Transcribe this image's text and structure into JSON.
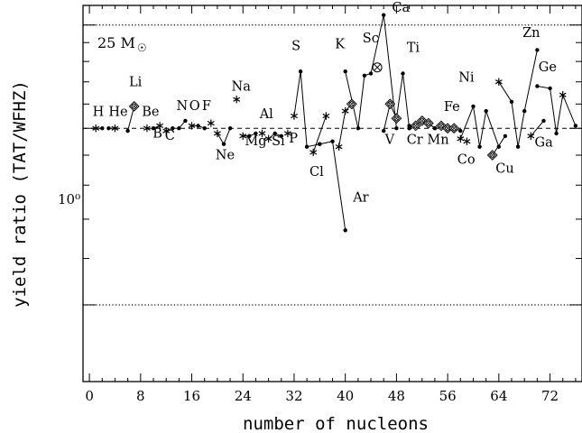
{
  "chart_data": {
    "type": "scatter",
    "title": "",
    "annotation": "25 M",
    "annotation_symbol": "☉",
    "xlabel": "number of nucleons",
    "ylabel": "yield ratio (TAT/WFHZ)",
    "xlim": [
      -1,
      77
    ],
    "ylim": [
      0.37,
      1.62
    ],
    "y_scale": "log",
    "x_ticks": [
      0,
      8,
      16,
      24,
      32,
      40,
      48,
      56,
      64,
      72
    ],
    "x_tick_labels": [
      "0",
      "8",
      "16",
      "24",
      "32",
      "40",
      "48",
      "56",
      "64",
      "72"
    ],
    "y_tick_label": "10⁰",
    "y_tick_label_value": 1.0,
    "y_major_ticks": [
      0.5,
      1.0,
      1.5
    ],
    "y_minor_ticks": [
      0.6,
      0.7,
      0.8,
      0.9,
      1.1,
      1.2,
      1.3,
      1.4
    ],
    "reference_lines": [
      {
        "y": 1.0,
        "style": "dashed"
      },
      {
        "y": 1.5,
        "style": "dotted"
      },
      {
        "y": 0.5,
        "style": "dotted"
      }
    ],
    "series": [
      {
        "element": "H",
        "points": [
          {
            "x": 1,
            "y": 1.0,
            "m": "star"
          },
          {
            "x": 2,
            "y": 1.0,
            "m": "dot"
          }
        ]
      },
      {
        "element": "He",
        "points": [
          {
            "x": 3,
            "y": 1.0,
            "m": "dot"
          },
          {
            "x": 4,
            "y": 1.0,
            "m": "star"
          }
        ]
      },
      {
        "element": "Li",
        "points": [
          {
            "x": 6,
            "y": 0.99,
            "m": "dot"
          },
          {
            "x": 7,
            "y": 1.09,
            "m": "dsq"
          }
        ]
      },
      {
        "element": "Be",
        "points": [
          {
            "x": 9,
            "y": 1.0,
            "m": "star"
          }
        ]
      },
      {
        "element": "B",
        "points": [
          {
            "x": 10,
            "y": 1.0,
            "m": "dot"
          },
          {
            "x": 11,
            "y": 1.01,
            "m": "star"
          }
        ]
      },
      {
        "element": "C",
        "points": [
          {
            "x": 12,
            "y": 0.99,
            "m": "star"
          },
          {
            "x": 13,
            "y": 1.0,
            "m": "dot"
          }
        ]
      },
      {
        "element": "N",
        "points": [
          {
            "x": 14,
            "y": 1.0,
            "m": "dot"
          },
          {
            "x": 15,
            "y": 1.03,
            "m": "dot"
          }
        ]
      },
      {
        "element": "O",
        "points": [
          {
            "x": 16,
            "y": 1.01,
            "m": "star"
          },
          {
            "x": 17,
            "y": 1.01,
            "m": "dot"
          },
          {
            "x": 18,
            "y": 1.0,
            "m": "dot"
          }
        ]
      },
      {
        "element": "F",
        "points": [
          {
            "x": 19,
            "y": 1.02,
            "m": "star"
          }
        ]
      },
      {
        "element": "Ne",
        "points": [
          {
            "x": 20,
            "y": 0.98,
            "m": "star"
          },
          {
            "x": 21,
            "y": 0.94,
            "m": "dot"
          },
          {
            "x": 22,
            "y": 1.0,
            "m": "dot"
          }
        ]
      },
      {
        "element": "Na",
        "points": [
          {
            "x": 23,
            "y": 1.12,
            "m": "star"
          }
        ]
      },
      {
        "element": "Mg",
        "points": [
          {
            "x": 24,
            "y": 0.97,
            "m": "star"
          },
          {
            "x": 25,
            "y": 0.97,
            "m": "dot"
          },
          {
            "x": 26,
            "y": 0.98,
            "m": "dot"
          }
        ]
      },
      {
        "element": "Al",
        "points": [
          {
            "x": 27,
            "y": 0.98,
            "m": "star"
          }
        ]
      },
      {
        "element": "Si",
        "points": [
          {
            "x": 28,
            "y": 0.96,
            "m": "star"
          },
          {
            "x": 29,
            "y": 0.98,
            "m": "dot"
          },
          {
            "x": 30,
            "y": 0.97,
            "m": "dot"
          }
        ]
      },
      {
        "element": "P",
        "points": [
          {
            "x": 31,
            "y": 0.98,
            "m": "star"
          }
        ]
      },
      {
        "element": "S",
        "points": [
          {
            "x": 32,
            "y": 1.05,
            "m": "star"
          },
          {
            "x": 33,
            "y": 1.25,
            "m": "dot"
          },
          {
            "x": 34,
            "y": 0.93,
            "m": "dot"
          },
          {
            "x": 36,
            "y": 0.94,
            "m": "dot"
          }
        ]
      },
      {
        "element": "Cl",
        "points": [
          {
            "x": 35,
            "y": 0.91,
            "m": "star"
          },
          {
            "x": 37,
            "y": 1.05,
            "m": "star"
          }
        ]
      },
      {
        "element": "Ar",
        "points": [
          {
            "x": 36,
            "y": 0.94,
            "m": "dot"
          },
          {
            "x": 38,
            "y": 0.95,
            "m": "dot"
          },
          {
            "x": 40,
            "y": 0.67,
            "m": "dot"
          }
        ]
      },
      {
        "element": "K",
        "points": [
          {
            "x": 39,
            "y": 0.93,
            "m": "star"
          },
          {
            "x": 40,
            "y": 1.07,
            "m": "star"
          },
          {
            "x": 41,
            "y": 1.1,
            "m": "dsq"
          }
        ]
      },
      {
        "element": "Ca",
        "points": [
          {
            "x": 40,
            "y": 1.25,
            "m": "dot"
          },
          {
            "x": 42,
            "y": 1.0,
            "m": "dot"
          },
          {
            "x": 43,
            "y": 1.23,
            "m": "dot"
          },
          {
            "x": 44,
            "y": 1.24,
            "m": "dot"
          },
          {
            "x": 46,
            "y": 1.56,
            "m": "dot"
          },
          {
            "x": 48,
            "y": 1.0,
            "m": "dot"
          }
        ]
      },
      {
        "element": "Sc",
        "points": [
          {
            "x": 45,
            "y": 1.27,
            "m": "otimes"
          }
        ]
      },
      {
        "element": "Ti",
        "points": [
          {
            "x": 46,
            "y": 0.99,
            "m": "dot"
          },
          {
            "x": 47,
            "y": 1.1,
            "m": "dsq"
          },
          {
            "x": 48,
            "y": 1.04,
            "m": "dsq"
          },
          {
            "x": 49,
            "y": 1.24,
            "m": "dot"
          },
          {
            "x": 50,
            "y": 1.0,
            "m": "dot"
          }
        ]
      },
      {
        "element": "V",
        "points": [
          {
            "x": 50,
            "y": 1.01,
            "m": "dot"
          },
          {
            "x": 51,
            "y": 1.01,
            "m": "dsq"
          }
        ]
      },
      {
        "element": "Cr",
        "points": [
          {
            "x": 50,
            "y": 1.0,
            "m": "dot"
          },
          {
            "x": 52,
            "y": 1.03,
            "m": "dsq"
          },
          {
            "x": 53,
            "y": 1.02,
            "m": "dsq"
          },
          {
            "x": 54,
            "y": 1.0,
            "m": "dot"
          }
        ]
      },
      {
        "element": "Mn",
        "points": [
          {
            "x": 55,
            "y": 1.01,
            "m": "dsq"
          }
        ]
      },
      {
        "element": "Fe",
        "points": [
          {
            "x": 54,
            "y": 1.0,
            "m": "dot"
          },
          {
            "x": 56,
            "y": 1.0,
            "m": "dsq"
          },
          {
            "x": 57,
            "y": 1.0,
            "m": "dsq"
          },
          {
            "x": 58,
            "y": 0.99,
            "m": "dot"
          }
        ]
      },
      {
        "element": "Co",
        "points": [
          {
            "x": 59,
            "y": 0.95,
            "m": "star"
          }
        ]
      },
      {
        "element": "Ni",
        "points": [
          {
            "x": 58,
            "y": 0.96,
            "m": "star"
          },
          {
            "x": 60,
            "y": 1.09,
            "m": "dot"
          },
          {
            "x": 61,
            "y": 0.93,
            "m": "dot"
          },
          {
            "x": 62,
            "y": 1.07,
            "m": "dot"
          },
          {
            "x": 64,
            "y": 0.93,
            "m": "dot"
          }
        ]
      },
      {
        "element": "Cu",
        "points": [
          {
            "x": 63,
            "y": 0.9,
            "m": "dsq"
          },
          {
            "x": 65,
            "y": 0.97,
            "m": "dot"
          }
        ]
      },
      {
        "element": "Zn",
        "points": [
          {
            "x": 64,
            "y": 1.2,
            "m": "star"
          },
          {
            "x": 66,
            "y": 1.11,
            "m": "dot"
          },
          {
            "x": 67,
            "y": 0.93,
            "m": "dot"
          },
          {
            "x": 68,
            "y": 1.07,
            "m": "dot"
          },
          {
            "x": 70,
            "y": 1.36,
            "m": "dot"
          }
        ]
      },
      {
        "element": "Ga",
        "points": [
          {
            "x": 69,
            "y": 0.97,
            "m": "star"
          },
          {
            "x": 71,
            "y": 1.03,
            "m": "dot"
          }
        ]
      },
      {
        "element": "Ge",
        "points": [
          {
            "x": 70,
            "y": 1.18,
            "m": "dot"
          },
          {
            "x": 72,
            "y": 1.17,
            "m": "dot"
          },
          {
            "x": 73,
            "y": 0.98,
            "m": "dot"
          },
          {
            "x": 74,
            "y": 1.14,
            "m": "star"
          },
          {
            "x": 76,
            "y": 1.01,
            "m": "dot"
          }
        ]
      }
    ],
    "element_labels": [
      {
        "text": "H",
        "x": 0.5,
        "y": 1.05
      },
      {
        "text": "He",
        "x": 3,
        "y": 1.05
      },
      {
        "text": "Li",
        "x": 6.2,
        "y": 1.18
      },
      {
        "text": "Be",
        "x": 8.2,
        "y": 1.05
      },
      {
        "text": "B",
        "x": 9.9,
        "y": 0.965
      },
      {
        "text": "C",
        "x": 11.8,
        "y": 0.955
      },
      {
        "text": "N",
        "x": 13.6,
        "y": 1.075
      },
      {
        "text": "O",
        "x": 15.6,
        "y": 1.075
      },
      {
        "text": "F",
        "x": 17.6,
        "y": 1.075
      },
      {
        "text": "Ne",
        "x": 19.7,
        "y": 0.885
      },
      {
        "text": "Na",
        "x": 22.2,
        "y": 1.16
      },
      {
        "text": "Mg",
        "x": 24.3,
        "y": 0.935
      },
      {
        "text": "Al",
        "x": 26.6,
        "y": 1.04
      },
      {
        "text": "Si",
        "x": 28.5,
        "y": 0.935
      },
      {
        "text": "P",
        "x": 31.2,
        "y": 0.945
      },
      {
        "text": "S",
        "x": 31.6,
        "y": 1.36
      },
      {
        "text": "Cl",
        "x": 34.4,
        "y": 0.83
      },
      {
        "text": "K",
        "x": 38.4,
        "y": 1.37
      },
      {
        "text": "Ar",
        "x": 41.2,
        "y": 0.75
      },
      {
        "text": "Sc",
        "x": 42.7,
        "y": 1.4
      },
      {
        "text": "Ca",
        "x": 47.3,
        "y": 1.58
      },
      {
        "text": "Ti",
        "x": 49.6,
        "y": 1.35
      },
      {
        "text": "V",
        "x": 46.2,
        "y": 0.94
      },
      {
        "text": "Cr",
        "x": 49.6,
        "y": 0.94
      },
      {
        "text": "Mn",
        "x": 52.8,
        "y": 0.94
      },
      {
        "text": "Fe",
        "x": 55.4,
        "y": 1.07
      },
      {
        "text": "Ni",
        "x": 57.7,
        "y": 1.2
      },
      {
        "text": "Co",
        "x": 57.5,
        "y": 0.87
      },
      {
        "text": "Cu",
        "x": 63.5,
        "y": 0.84
      },
      {
        "text": "Zn",
        "x": 67.7,
        "y": 1.43
      },
      {
        "text": "Ge",
        "x": 70.2,
        "y": 1.25
      },
      {
        "text": "Ga",
        "x": 69.6,
        "y": 0.93
      }
    ]
  }
}
